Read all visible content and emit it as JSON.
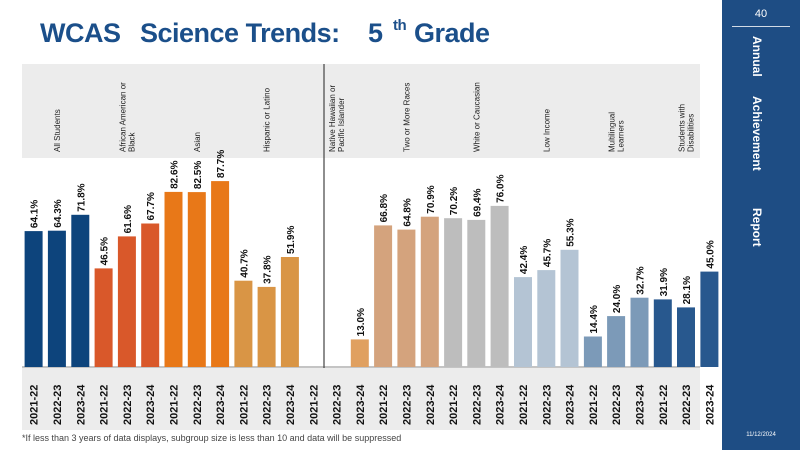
{
  "title": {
    "part1": "WCAS",
    "part2": "Science Trends:",
    "grade_num": "5",
    "grade_sup": "th",
    "grade_word": "Grade"
  },
  "sidebar": {
    "page_number": "40",
    "word1": "Annual",
    "word2": "Achievement",
    "word3": "Report",
    "date": "11/12/2024"
  },
  "footnote": "*If less than 3 years of data displays, subgroup size is less than 10 and data will be suppressed",
  "chart_data": {
    "type": "bar",
    "ylim": [
      0,
      100
    ],
    "x_categories": [
      "2021-22",
      "2022-23",
      "2023-24"
    ],
    "groups": [
      {
        "name": "All Students",
        "color": "#0d447c",
        "values": [
          64.1,
          64.3,
          71.8
        ]
      },
      {
        "name": "African American or Black",
        "color": "#d9582a",
        "values": [
          46.5,
          61.6,
          67.7
        ]
      },
      {
        "name": "Asian",
        "color": "#e87818",
        "values": [
          82.6,
          82.5,
          87.7
        ]
      },
      {
        "name": "Hispanic or Latino",
        "color": "#d99545",
        "values": [
          40.7,
          37.8,
          51.9
        ]
      },
      {
        "name": "Native Hawaiian or Pacific Islander",
        "color": "#e0a060",
        "values": [
          null,
          null,
          13.0
        ]
      },
      {
        "name": "Two or More Races",
        "color": "#d4a37d",
        "values": [
          66.8,
          64.8,
          70.9
        ]
      },
      {
        "name": "White or Caucasian",
        "color": "#bdbdbd",
        "values": [
          70.2,
          69.4,
          76.0
        ]
      },
      {
        "name": "Low Income",
        "color": "#b4c4d4",
        "values": [
          42.4,
          45.7,
          55.3
        ]
      },
      {
        "name": "Multilingual Learners",
        "color": "#7c9ab8",
        "values": [
          14.4,
          24.0,
          32.7
        ]
      },
      {
        "name": "Students with Disabilities",
        "color": "#28588e",
        "values": [
          31.9,
          28.1,
          45.0
        ]
      }
    ]
  }
}
